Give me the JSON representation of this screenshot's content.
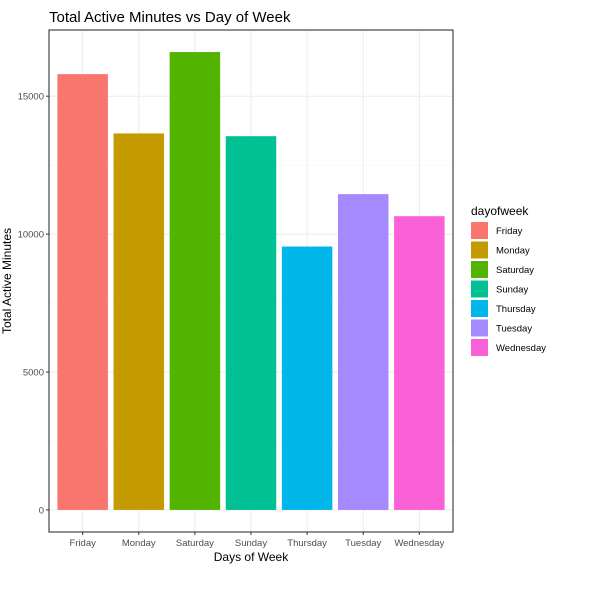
{
  "chart_data": {
    "type": "bar",
    "title": "Total Active Minutes vs Day of Week",
    "xlabel": "Days of Week",
    "ylabel": "Total Active Minutes",
    "categories": [
      "Friday",
      "Monday",
      "Saturday",
      "Sunday",
      "Thursday",
      "Tuesday",
      "Wednesday"
    ],
    "values": [
      15800,
      13650,
      16600,
      13550,
      9550,
      11450,
      10650
    ],
    "colors": [
      "#F8766D",
      "#C49A00",
      "#53B400",
      "#00C094",
      "#00B6EB",
      "#A58AFF",
      "#FB61D7"
    ],
    "ylim": [
      -800,
      17400
    ],
    "yticks": [
      0,
      5000,
      10000,
      15000
    ],
    "ytick_labels": [
      "0",
      "5000",
      "10000",
      "15000"
    ],
    "grid": true,
    "legend": {
      "title": "dayofweek",
      "position": "right",
      "items": [
        "Friday",
        "Monday",
        "Saturday",
        "Sunday",
        "Thursday",
        "Tuesday",
        "Wednesday"
      ]
    }
  }
}
